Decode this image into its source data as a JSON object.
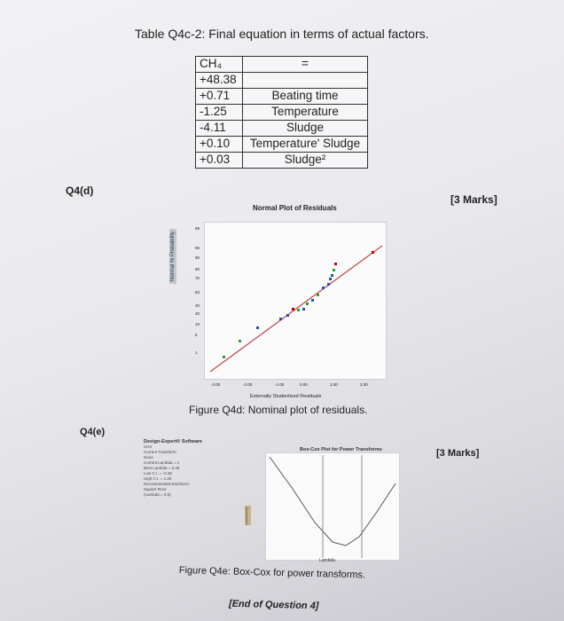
{
  "header": {
    "table_title": "Table Q4c-2: Final equation in terms of actual factors."
  },
  "equation_table": {
    "response": "CH₄",
    "equals": "=",
    "rows": [
      {
        "coef": "+48.38",
        "term": ""
      },
      {
        "coef": "+0.71",
        "term": "Beating time"
      },
      {
        "coef": "-1.25",
        "term": "Temperature"
      },
      {
        "coef": "-4.11",
        "term": "Sludge"
      },
      {
        "coef": "+0.10",
        "term": "Temperature' Sludge"
      },
      {
        "coef": "+0.03",
        "term": "Sludge²"
      }
    ]
  },
  "q4d": {
    "label": "Q4(d)",
    "marks": "[3 Marks]",
    "plot_title": "Normal Plot of Residuals",
    "y_label": "Normal % Probability",
    "x_label": "Externally Studentized Residuals",
    "y_ticks": [
      "99",
      "95",
      "90",
      "80",
      "70",
      "50",
      "30",
      "20",
      "10",
      "5",
      "1"
    ],
    "x_ticks": [
      "-3.00",
      "-2.00",
      "-1.00",
      "0.00",
      "1.00",
      "2.00"
    ],
    "caption": "Figure Q4d: Nominal plot of residuals."
  },
  "q4e": {
    "label": "Q4(e)",
    "marks": "[3 Marks]",
    "panel_header": "Design-Expert® Software",
    "panel_lines": [
      "CH4",
      "Current Transform:",
      "None",
      "Current Lambda = 1",
      "Best Lambda = 0.45",
      "Low C.I. = -0.35",
      "High C.I. = 1.20",
      "Recommended transform:",
      "Square Root",
      "(Lambda = 0.5)"
    ],
    "plot_title": "Box-Cox Plot for Power Transforms",
    "x_label": "Lambda",
    "y_label": "Ln(ResidualSS)",
    "caption": "Figure Q4e: Box-Cox for power transforms."
  },
  "footer": {
    "end_text": "[End of Question 4]"
  },
  "colors": {
    "fit_line": "#c0504d",
    "point_blue": "#1f4fbf",
    "point_green": "#2ca02c",
    "point_red": "#c00000",
    "curve": "#555555"
  }
}
